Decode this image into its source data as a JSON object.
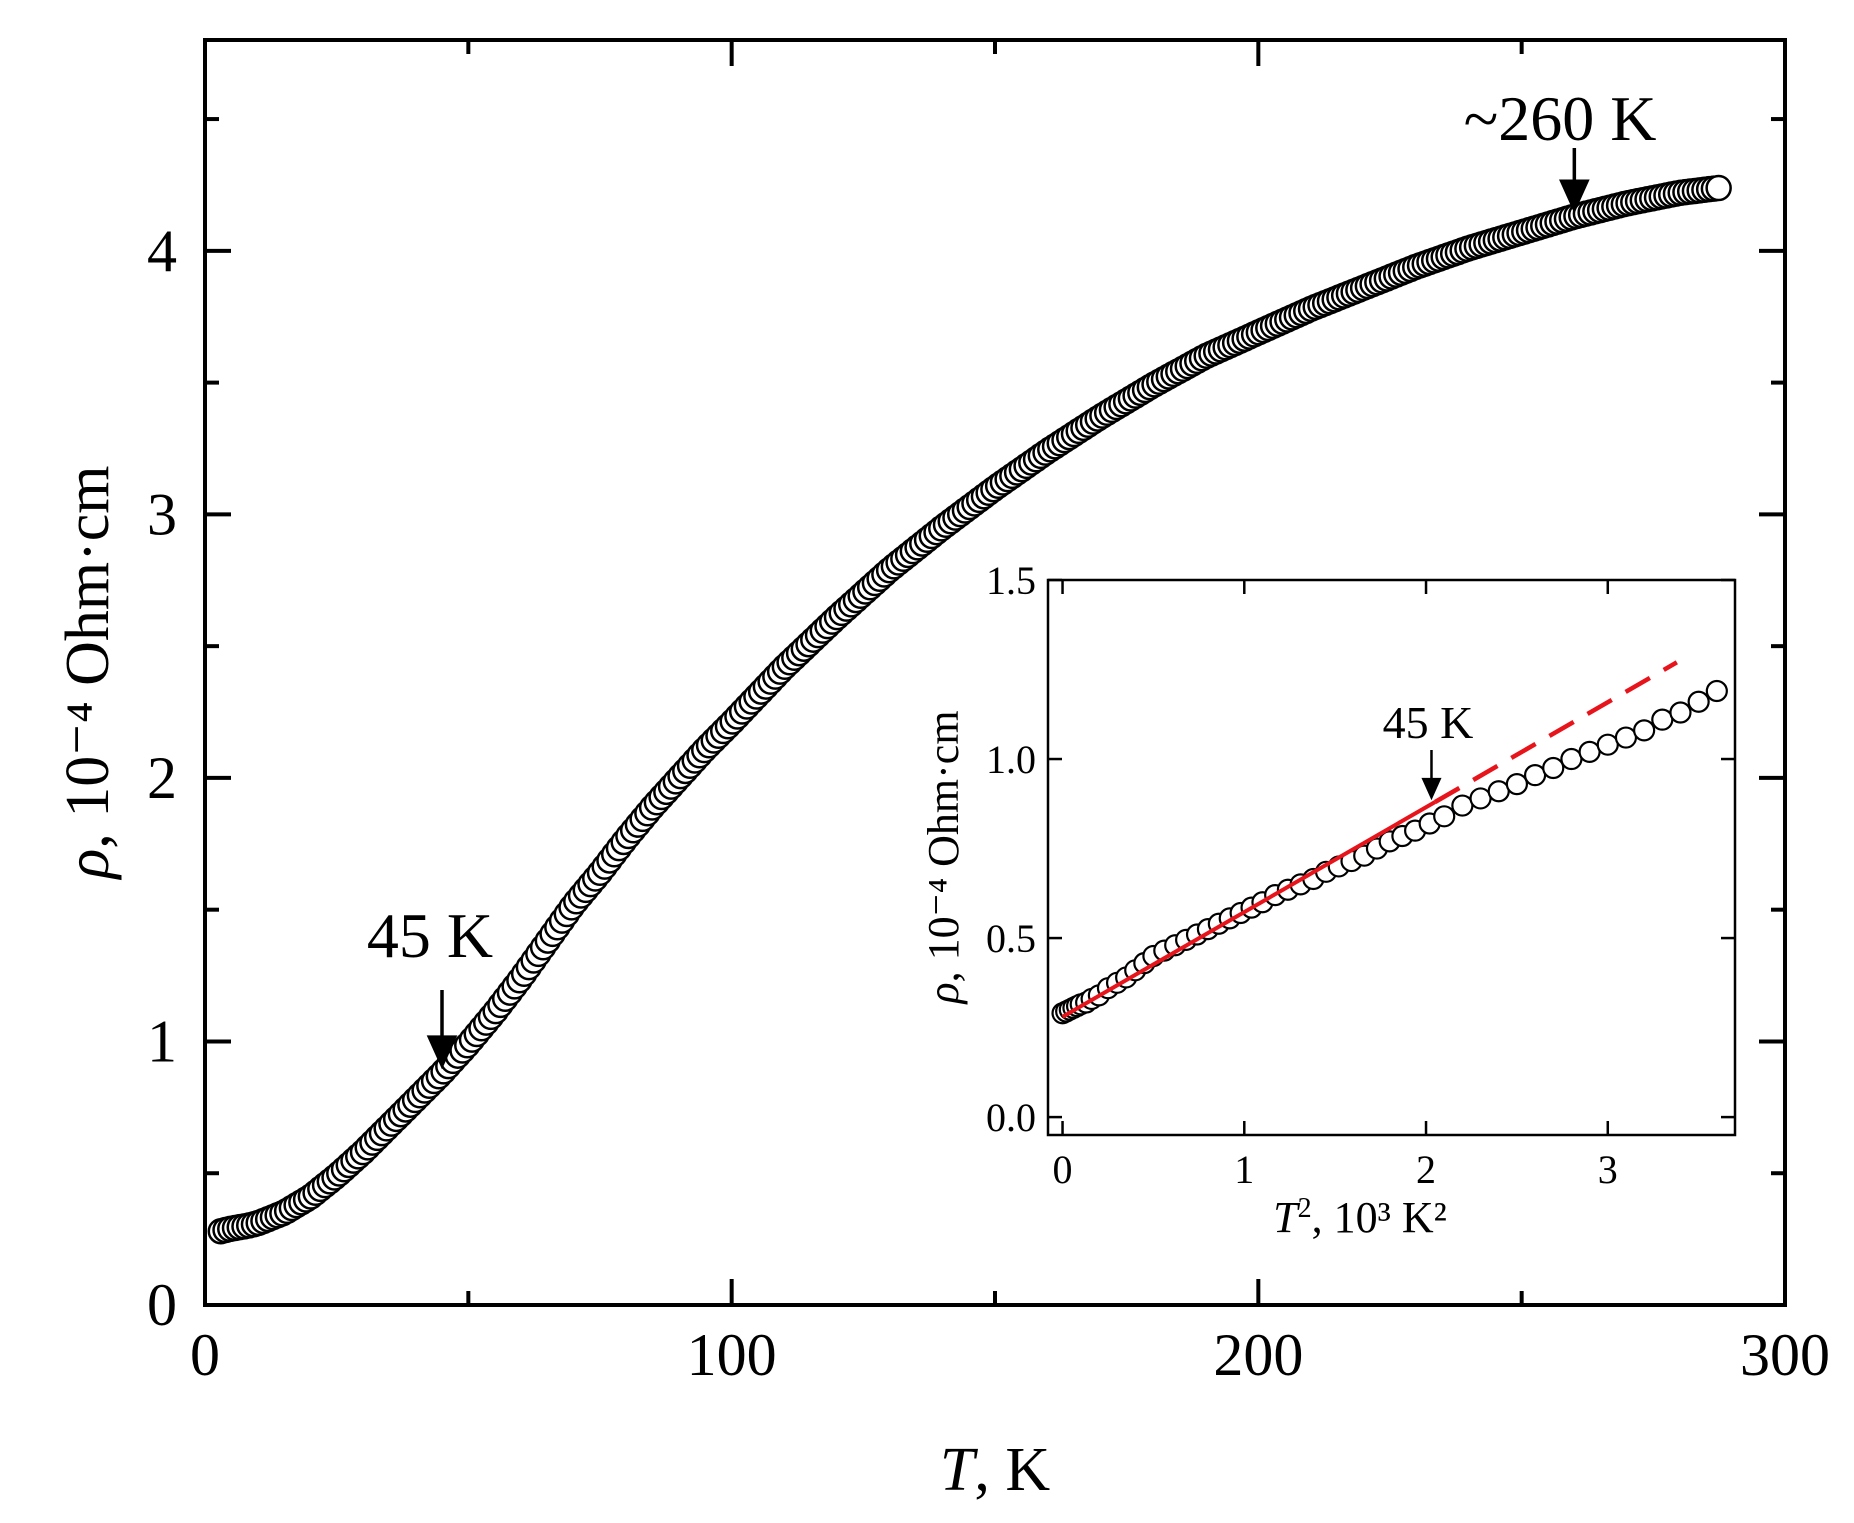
{
  "colors": {
    "axis": "#000000",
    "marker_stroke": "#000000",
    "marker_fill": "#ffffff",
    "fit": "#e8141b",
    "background": "#ffffff"
  },
  "chart_data": [
    {
      "id": "main",
      "type": "scatter",
      "marker": "open-circle",
      "title": "",
      "xlabel_var": "T",
      "xlabel_unit": ", K",
      "ylabel_var": "ρ",
      "ylabel_unit": ", 10⁻⁴ Ohm·cm",
      "xlim": [
        0,
        300
      ],
      "ylim": [
        0,
        4.8
      ],
      "xticks": [
        0,
        100,
        200,
        300
      ],
      "xtick_labels": [
        "0",
        "100",
        "200",
        "300"
      ],
      "yticks": [
        0,
        1,
        2,
        3,
        4
      ],
      "ytick_labels": [
        "0",
        "1",
        "2",
        "3",
        "4"
      ],
      "x_minor_step": 50,
      "y_minor_step": 0.5,
      "curve_points": [
        [
          3,
          0.28
        ],
        [
          5,
          0.29
        ],
        [
          8,
          0.3
        ],
        [
          10,
          0.31
        ],
        [
          15,
          0.35
        ],
        [
          20,
          0.41
        ],
        [
          25,
          0.49
        ],
        [
          30,
          0.58
        ],
        [
          35,
          0.68
        ],
        [
          40,
          0.78
        ],
        [
          45,
          0.88
        ],
        [
          50,
          0.99
        ],
        [
          55,
          1.11
        ],
        [
          60,
          1.24
        ],
        [
          65,
          1.38
        ],
        [
          70,
          1.52
        ],
        [
          75,
          1.64
        ],
        [
          80,
          1.77
        ],
        [
          85,
          1.89
        ],
        [
          90,
          2.0
        ],
        [
          95,
          2.11
        ],
        [
          100,
          2.21
        ],
        [
          110,
          2.42
        ],
        [
          120,
          2.61
        ],
        [
          130,
          2.79
        ],
        [
          140,
          2.95
        ],
        [
          150,
          3.1
        ],
        [
          160,
          3.24
        ],
        [
          170,
          3.37
        ],
        [
          180,
          3.49
        ],
        [
          190,
          3.6
        ],
        [
          200,
          3.69
        ],
        [
          210,
          3.78
        ],
        [
          220,
          3.86
        ],
        [
          230,
          3.94
        ],
        [
          240,
          4.01
        ],
        [
          250,
          4.07
        ],
        [
          260,
          4.13
        ],
        [
          270,
          4.18
        ],
        [
          280,
          4.22
        ],
        [
          288,
          4.24
        ]
      ],
      "annotations": [
        {
          "text": "45 K",
          "x": 45,
          "y": 0.88
        },
        {
          "text": "~260 K",
          "x": 260,
          "y": 4.12
        }
      ]
    },
    {
      "id": "inset",
      "type": "scatter",
      "marker": "open-circle",
      "xlabel_var": "T",
      "xlabel_sup": "2",
      "xlabel_unit": ", 10³ K²",
      "ylabel_var": "ρ",
      "ylabel_unit": ", 10⁻⁴ Ohm·cm",
      "xlim": [
        -0.08,
        3.7
      ],
      "ylim": [
        -0.05,
        1.5
      ],
      "xticks": [
        0,
        1,
        2,
        3
      ],
      "xtick_labels": [
        "0",
        "1",
        "2",
        "3"
      ],
      "yticks": [
        0.0,
        0.5,
        1.0,
        1.5
      ],
      "ytick_labels": [
        "0.0",
        "0.5",
        "1.0",
        "1.5"
      ],
      "x": [
        0.0,
        0.02,
        0.04,
        0.06,
        0.08,
        0.1,
        0.13,
        0.16,
        0.2,
        0.25,
        0.3,
        0.35,
        0.4,
        0.45,
        0.5,
        0.56,
        0.62,
        0.68,
        0.74,
        0.8,
        0.86,
        0.92,
        0.98,
        1.04,
        1.1,
        1.17,
        1.24,
        1.31,
        1.38,
        1.45,
        1.52,
        1.59,
        1.66,
        1.73,
        1.8,
        1.87,
        1.94,
        2.02,
        2.1,
        2.2,
        2.3,
        2.4,
        2.5,
        2.6,
        2.7,
        2.8,
        2.9,
        3.0,
        3.1,
        3.2,
        3.3,
        3.4,
        3.5,
        3.6
      ],
      "y": [
        0.29,
        0.295,
        0.3,
        0.305,
        0.31,
        0.315,
        0.32,
        0.33,
        0.34,
        0.36,
        0.375,
        0.39,
        0.41,
        0.43,
        0.45,
        0.465,
        0.48,
        0.495,
        0.51,
        0.525,
        0.54,
        0.555,
        0.57,
        0.585,
        0.6,
        0.62,
        0.635,
        0.65,
        0.665,
        0.685,
        0.7,
        0.715,
        0.73,
        0.75,
        0.77,
        0.785,
        0.8,
        0.82,
        0.84,
        0.87,
        0.89,
        0.91,
        0.93,
        0.955,
        0.975,
        1.0,
        1.02,
        1.04,
        1.06,
        1.08,
        1.11,
        1.13,
        1.16,
        1.19
      ],
      "fit_line": {
        "x": [
          0.0,
          2.05
        ],
        "y": [
          0.28,
          0.88
        ],
        "style": "solid",
        "color": "#e8141b"
      },
      "fit_extrapolation": {
        "x": [
          2.05,
          3.38
        ],
        "y": [
          0.88,
          1.27
        ],
        "style": "dashed",
        "color": "#e8141b"
      },
      "annotations": [
        {
          "text": "45 K",
          "x": 2.03,
          "y": 0.86
        }
      ]
    }
  ]
}
